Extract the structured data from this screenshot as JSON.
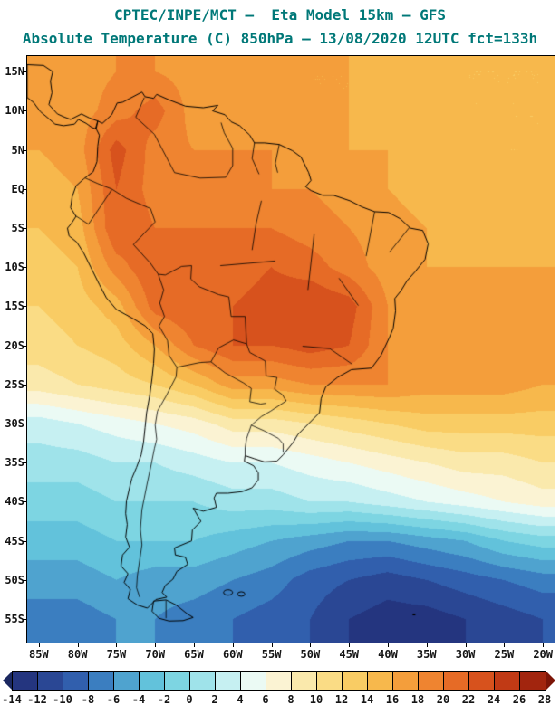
{
  "theme": {
    "title_color": "#007878",
    "axis_text_color": "#151515"
  },
  "header": {
    "line1": "CPTEC/INPE/MCT —  Eta Model 15km — GFS",
    "line2": "Absolute Temperature (C) 850hPa — 13/08/2020 12UTC fct=133h"
  },
  "axes": {
    "lat_labels": [
      "15N",
      "10N",
      "5N",
      "EQ",
      "5S",
      "10S",
      "15S",
      "20S",
      "25S",
      "30S",
      "35S",
      "40S",
      "45S",
      "50S",
      "55S"
    ],
    "lat_values": [
      15,
      10,
      5,
      0,
      -5,
      -10,
      -15,
      -20,
      -25,
      -30,
      -35,
      -40,
      -45,
      -50,
      -55
    ],
    "lon_labels": [
      "85W",
      "80W",
      "75W",
      "70W",
      "65W",
      "60W",
      "55W",
      "50W",
      "45W",
      "40W",
      "35W",
      "30W",
      "25W",
      "20W"
    ],
    "lon_values": [
      -85,
      -80,
      -75,
      -70,
      -65,
      -60,
      -55,
      -50,
      -45,
      -40,
      -35,
      -30,
      -25,
      -20
    ]
  },
  "colorbar": {
    "tick_labels": [
      "-14",
      "-12",
      "-10",
      "-8",
      "-6",
      "-4",
      "-2",
      "0",
      "2",
      "4",
      "6",
      "8",
      "10",
      "12",
      "14",
      "16",
      "18",
      "20",
      "22",
      "24",
      "26",
      "28"
    ],
    "cell_colors": [
      "#24357F",
      "#2A4794",
      "#315FAD",
      "#3B7EC0",
      "#4FA3CF",
      "#62C2DB",
      "#7DD5E2",
      "#9FE3EA",
      "#C6F0F2",
      "#EBFAF4",
      "#FBF3D3",
      "#FAE9AC",
      "#FADC85",
      "#F9CC64",
      "#F7B84C",
      "#F49E3B",
      "#EF8430",
      "#E66B26",
      "#D7521D",
      "#C13A15",
      "#A2250E"
    ],
    "under_color": "#1B2860",
    "over_color": "#7C1507"
  },
  "chart_data": {
    "type": "heatmap",
    "institution": "CPTEC/INPE/MCT",
    "model": "Eta Model 15km — GFS",
    "variable": "Absolute Temperature (C) 850hPa",
    "valid": "13/08/2020 12UTC",
    "forecast": "fct=133h",
    "units": "C",
    "level_min": -14,
    "level_max": 28,
    "level_step": 2,
    "grid_lons": [
      -85,
      -80,
      -75,
      -70,
      -65,
      -60,
      -55,
      -50,
      -45,
      -40,
      -35,
      -30,
      -25,
      -20
    ],
    "grid_lats": [
      15,
      10,
      5,
      0,
      -5,
      -10,
      -15,
      -20,
      -25,
      -30,
      -35,
      -40,
      -45,
      -50,
      -55
    ],
    "temperature_grid": [
      [
        17,
        17,
        18,
        18,
        17,
        17,
        17,
        16,
        16,
        15,
        15,
        14,
        14,
        14
      ],
      [
        17,
        17,
        19,
        21,
        17,
        17,
        17,
        16,
        16,
        15,
        15,
        14,
        14,
        14
      ],
      [
        16,
        17,
        23,
        19,
        18,
        18,
        18,
        17,
        16,
        16,
        15,
        15,
        14,
        14
      ],
      [
        15,
        16,
        22,
        19,
        19,
        19,
        18,
        18,
        17,
        16,
        15,
        15,
        15,
        15
      ],
      [
        14,
        15,
        22,
        20,
        20,
        20,
        20,
        19,
        18,
        17,
        16,
        15,
        15,
        15
      ],
      [
        13,
        14,
        19,
        22,
        21,
        21,
        22,
        21,
        19,
        17,
        16,
        16,
        16,
        16
      ],
      [
        12,
        13,
        15,
        21,
        22,
        22,
        23,
        24,
        23,
        18,
        17,
        17,
        17,
        17
      ],
      [
        11,
        12,
        13,
        16,
        20,
        22,
        22,
        23,
        22,
        18,
        18,
        17,
        17,
        17
      ],
      [
        9,
        10,
        11,
        12,
        14,
        17,
        17,
        18,
        18,
        18,
        17,
        17,
        17,
        16
      ],
      [
        3,
        4,
        5,
        6,
        7,
        9,
        9,
        10,
        11,
        12,
        13,
        13,
        13,
        13
      ],
      [
        1,
        1,
        2,
        2,
        3,
        4,
        4,
        5,
        6,
        7,
        8,
        9,
        9,
        10
      ],
      [
        -1,
        -1,
        0,
        0,
        0,
        1,
        1,
        2,
        2,
        3,
        4,
        5,
        6,
        7
      ],
      [
        -3,
        -3,
        -2,
        -2,
        -2,
        -3,
        -4,
        -5,
        -6,
        -6,
        -5,
        -4,
        -2,
        -1
      ],
      [
        -5,
        -5,
        -4,
        -5,
        -5,
        -6,
        -7,
        -9,
        -10,
        -11,
        -10,
        -9,
        -8,
        -7
      ],
      [
        -7,
        -7,
        -6,
        -6,
        -7,
        -8,
        -9,
        -10,
        -12,
        -13,
        -13,
        -12,
        -11,
        -10
      ]
    ]
  }
}
